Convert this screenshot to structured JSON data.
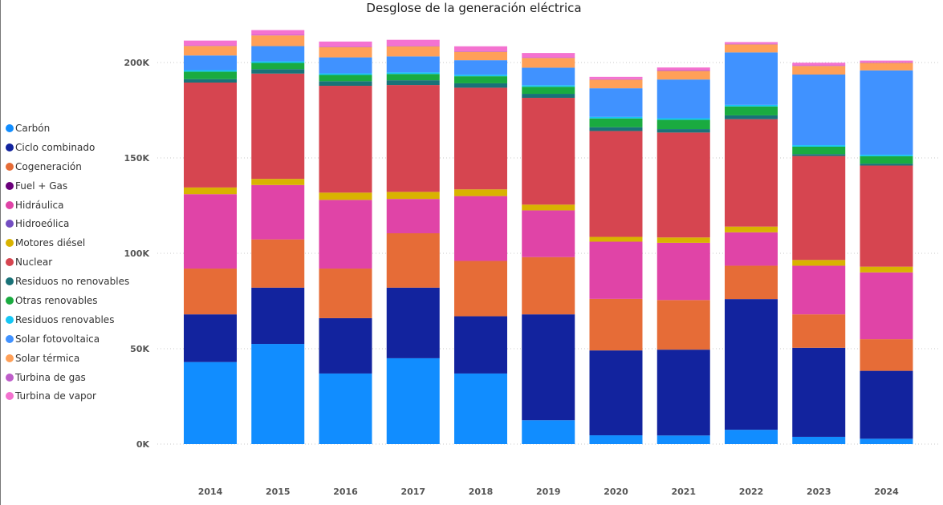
{
  "chart_data": {
    "type": "bar",
    "stacked": true,
    "title": "Desglose de la generación eléctrica",
    "xlabel": "",
    "ylabel": "",
    "categories": [
      "2014",
      "2015",
      "2016",
      "2017",
      "2018",
      "2019",
      "2020",
      "2021",
      "2022",
      "2023",
      "2024"
    ],
    "ylim": [
      0,
      215000
    ],
    "yticks": [
      0,
      50000,
      100000,
      150000,
      200000
    ],
    "ytick_labels": [
      "0K",
      "50K",
      "100K",
      "150K",
      "200K"
    ],
    "grid": true,
    "legend_position": "left",
    "series": [
      {
        "name": "Carbón",
        "color": "#118DFF",
        "values": [
          43000,
          52500,
          37000,
          45000,
          37000,
          12500,
          4600,
          4500,
          7500,
          3800,
          2800
        ]
      },
      {
        "name": "Ciclo combinado",
        "color": "#12239E",
        "values": [
          25000,
          29500,
          29000,
          37000,
          30000,
          55500,
          44500,
          45000,
          68500,
          46700,
          35600
        ]
      },
      {
        "name": "Cogeneración",
        "color": "#E66C37",
        "values": [
          24000,
          25300,
          26000,
          28500,
          29000,
          30000,
          27000,
          26000,
          17500,
          17500,
          16600
        ]
      },
      {
        "name": "Fuel + Gas",
        "color": "#6B007B",
        "values": [
          0,
          0,
          0,
          0,
          0,
          0,
          0,
          0,
          0,
          0,
          0
        ]
      },
      {
        "name": "Hidráulica",
        "color": "#E044A7",
        "values": [
          39000,
          28500,
          36000,
          18000,
          34000,
          24500,
          30000,
          30000,
          17500,
          25500,
          35000
        ]
      },
      {
        "name": "Hidroeólica",
        "color": "#744EC2",
        "values": [
          0,
          0,
          0,
          0,
          0,
          0,
          0,
          0,
          0,
          0,
          0
        ]
      },
      {
        "name": "Motores diésel",
        "color": "#D9B300",
        "values": [
          3500,
          3200,
          3800,
          3700,
          3500,
          3000,
          2500,
          2800,
          3000,
          3000,
          3000
        ]
      },
      {
        "name": "Nuclear",
        "color": "#D64550",
        "values": [
          55000,
          55200,
          56000,
          56000,
          53300,
          56000,
          55500,
          55000,
          56300,
          54500,
          53000
        ]
      },
      {
        "name": "Residuos no renovables",
        "color": "#197278",
        "values": [
          1800,
          2300,
          2400,
          2500,
          2300,
          2100,
          2000,
          1800,
          2000,
          1000,
          1000
        ]
      },
      {
        "name": "Otras renovables",
        "color": "#1AAB40",
        "values": [
          3900,
          3300,
          3300,
          3300,
          3700,
          3700,
          4600,
          4900,
          4700,
          3900,
          3900
        ]
      },
      {
        "name": "Residuos renovables",
        "color": "#15C6F4",
        "values": [
          800,
          800,
          800,
          800,
          800,
          800,
          800,
          800,
          800,
          800,
          800
        ]
      },
      {
        "name": "Solar fotovoltaica",
        "color": "#4092FF",
        "values": [
          7700,
          8000,
          8400,
          8400,
          7600,
          9200,
          15000,
          20300,
          27500,
          37000,
          44200
        ]
      },
      {
        "name": "Solar térmica",
        "color": "#FFA058",
        "values": [
          5000,
          5600,
          5400,
          5300,
          4400,
          5100,
          4500,
          4500,
          4200,
          4500,
          3900
        ]
      },
      {
        "name": "Turbina de gas",
        "color": "#BE5DC9",
        "values": [
          300,
          300,
          300,
          300,
          300,
          300,
          300,
          400,
          300,
          300,
          300
        ]
      },
      {
        "name": "Turbina de vapor",
        "color": "#F472D0",
        "values": [
          2500,
          2500,
          2600,
          3100,
          2600,
          2300,
          1200,
          1400,
          900,
          1400,
          900
        ]
      }
    ]
  }
}
